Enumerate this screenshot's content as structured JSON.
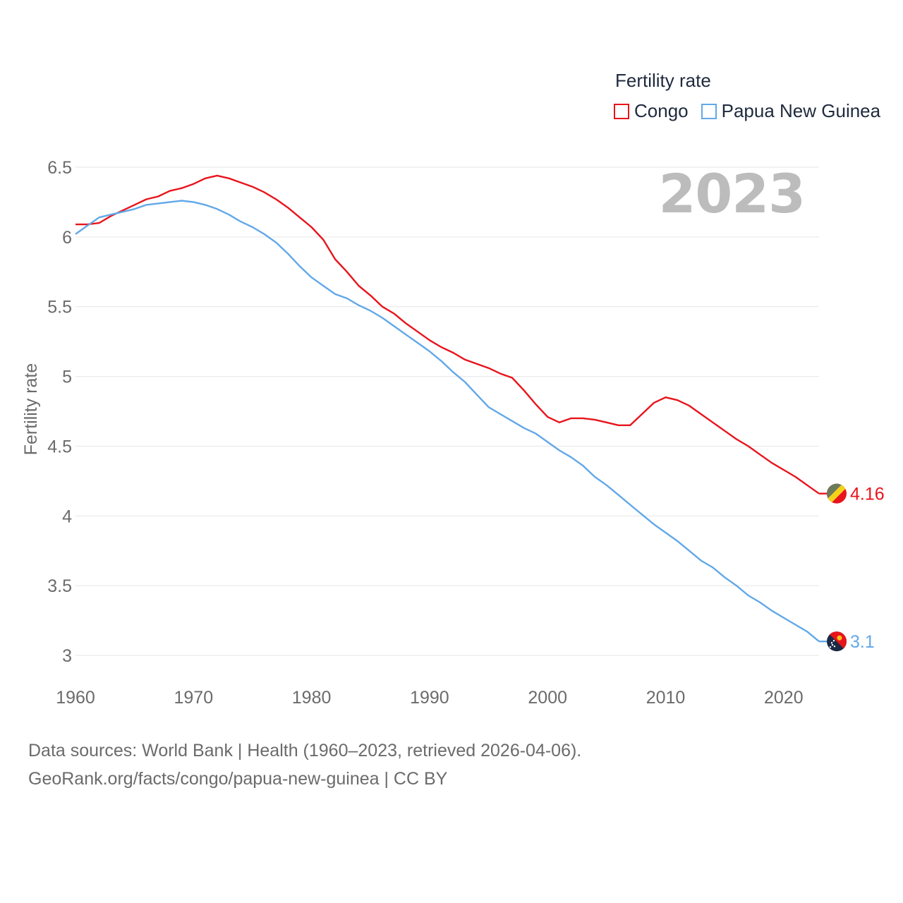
{
  "legend": {
    "title": "Fertility rate",
    "items": [
      {
        "label": "Congo",
        "color": "#e8141c"
      },
      {
        "label": "Papua New Guinea",
        "color": "#62a8e8"
      }
    ]
  },
  "year_label": "2023",
  "source": {
    "line1": "Data sources: World Bank | Health (1960–2023, retrieved 2026-04-06).",
    "line2": "GeoRank.org/facts/congo/papua-new-guinea | CC BY"
  },
  "chart_data": {
    "type": "line",
    "title": "Fertility rate",
    "xlabel": "",
    "ylabel": "Fertility rate",
    "xlim": [
      1960,
      2023
    ],
    "ylim": [
      3,
      6.5
    ],
    "x_ticks": [
      1960,
      1970,
      1980,
      1990,
      2000,
      2010,
      2020
    ],
    "y_ticks": [
      3,
      3.5,
      4,
      4.5,
      5,
      5.5,
      6,
      6.5
    ],
    "y_tick_labels": [
      "3",
      "3.5",
      "4",
      "4.5",
      "5",
      "5.5",
      "6",
      "6.5"
    ],
    "grid": true,
    "legend_position": "top-right",
    "x": [
      1960,
      1961,
      1962,
      1963,
      1964,
      1965,
      1966,
      1967,
      1968,
      1969,
      1970,
      1971,
      1972,
      1973,
      1974,
      1975,
      1976,
      1977,
      1978,
      1979,
      1980,
      1981,
      1982,
      1983,
      1984,
      1985,
      1986,
      1987,
      1988,
      1989,
      1990,
      1991,
      1992,
      1993,
      1994,
      1995,
      1996,
      1997,
      1998,
      1999,
      2000,
      2001,
      2002,
      2003,
      2004,
      2005,
      2006,
      2007,
      2008,
      2009,
      2010,
      2011,
      2012,
      2013,
      2014,
      2015,
      2016,
      2017,
      2018,
      2019,
      2020,
      2021,
      2022,
      2023
    ],
    "series": [
      {
        "name": "Congo",
        "color": "#e8141c",
        "end_label": "4.16",
        "values": [
          6.09,
          6.09,
          6.1,
          6.15,
          6.19,
          6.23,
          6.27,
          6.29,
          6.33,
          6.35,
          6.38,
          6.42,
          6.44,
          6.42,
          6.39,
          6.36,
          6.32,
          6.27,
          6.21,
          6.14,
          6.07,
          5.98,
          5.84,
          5.75,
          5.65,
          5.58,
          5.5,
          5.45,
          5.38,
          5.32,
          5.26,
          5.21,
          5.17,
          5.12,
          5.09,
          5.06,
          5.02,
          4.99,
          4.9,
          4.8,
          4.71,
          4.67,
          4.7,
          4.7,
          4.69,
          4.67,
          4.65,
          4.65,
          4.73,
          4.81,
          4.85,
          4.83,
          4.79,
          4.73,
          4.67,
          4.61,
          4.55,
          4.5,
          4.44,
          4.38,
          4.33,
          4.28,
          4.22,
          4.16
        ]
      },
      {
        "name": "Papua New Guinea",
        "color": "#62a8e8",
        "end_label": "3.1",
        "values": [
          6.02,
          6.08,
          6.14,
          6.16,
          6.18,
          6.2,
          6.23,
          6.24,
          6.25,
          6.26,
          6.25,
          6.23,
          6.2,
          6.16,
          6.11,
          6.07,
          6.02,
          5.96,
          5.88,
          5.79,
          5.71,
          5.65,
          5.59,
          5.56,
          5.51,
          5.47,
          5.42,
          5.36,
          5.3,
          5.24,
          5.18,
          5.11,
          5.03,
          4.96,
          4.87,
          4.78,
          4.73,
          4.68,
          4.63,
          4.59,
          4.53,
          4.47,
          4.42,
          4.36,
          4.28,
          4.22,
          4.15,
          4.08,
          4.01,
          3.94,
          3.88,
          3.82,
          3.75,
          3.68,
          3.63,
          3.56,
          3.5,
          3.43,
          3.38,
          3.32,
          3.27,
          3.22,
          3.17,
          3.1
        ]
      }
    ]
  }
}
